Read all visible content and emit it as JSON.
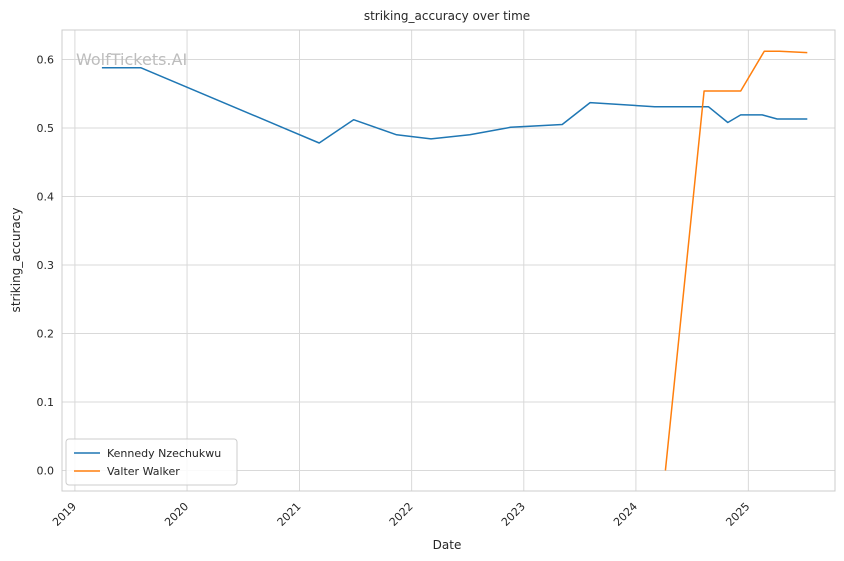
{
  "chart_data": {
    "type": "line",
    "title": "striking_accuracy over time",
    "xlabel": "Date",
    "ylabel": "striking_accuracy",
    "watermark": "WolfTickets.AI",
    "xlim": [
      "2018-11-20",
      "2025-10-10"
    ],
    "ylim": [
      -0.03,
      0.643
    ],
    "x_ticks": [
      "2019",
      "2020",
      "2021",
      "2022",
      "2023",
      "2024",
      "2025"
    ],
    "y_ticks": [
      "0.0",
      "0.1",
      "0.2",
      "0.3",
      "0.4",
      "0.5",
      "0.6"
    ],
    "grid": true,
    "legend": "bottom-left",
    "series": [
      {
        "name": "Kennedy Nzechukwu",
        "color": "#1f77b4",
        "points": [
          [
            "2019-03-30",
            0.588
          ],
          [
            "2019-08-03",
            0.588
          ],
          [
            "2021-03-06",
            0.478
          ],
          [
            "2021-06-26",
            0.512
          ],
          [
            "2021-11-13",
            0.49
          ],
          [
            "2022-03-05",
            0.484
          ],
          [
            "2022-07-09",
            0.49
          ],
          [
            "2022-11-19",
            0.501
          ],
          [
            "2023-05-06",
            0.505
          ],
          [
            "2023-08-05",
            0.537
          ],
          [
            "2024-03-02",
            0.531
          ],
          [
            "2024-08-24",
            0.531
          ],
          [
            "2024-10-26",
            0.508
          ],
          [
            "2024-12-07",
            0.519
          ],
          [
            "2025-02-15",
            0.519
          ],
          [
            "2025-04-05",
            0.513
          ],
          [
            "2025-07-12",
            0.513
          ]
        ]
      },
      {
        "name": "Valter Walker",
        "color": "#ff7f0e",
        "points": [
          [
            "2024-04-06",
            0.0
          ],
          [
            "2024-08-10",
            0.554
          ],
          [
            "2024-12-07",
            0.554
          ],
          [
            "2025-02-22",
            0.612
          ],
          [
            "2025-04-12",
            0.612
          ],
          [
            "2025-07-12",
            0.61
          ]
        ]
      }
    ]
  }
}
